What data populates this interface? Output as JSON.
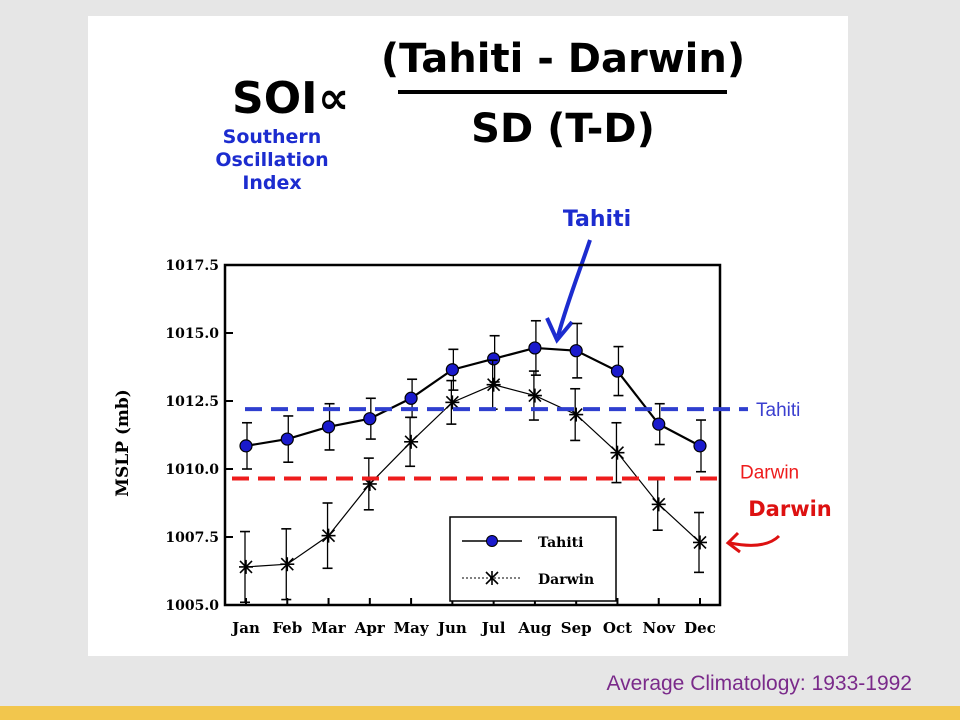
{
  "slide": {
    "caption": "Average Climatology: 1933-1992",
    "colors": {
      "background": "#e6e6e6",
      "bottom_bar": "#f2c64d",
      "caption": "#7a2a8a",
      "tahiti_line": "#2f3fcf",
      "darwin_line": "#ee1c1c",
      "annotation_blue": "#1c2ccf",
      "annotation_red": "#dd1111"
    }
  },
  "formula": {
    "lhs": "SOI",
    "proportional_symbol": "∝",
    "numerator": "(Tahiti - Darwin)",
    "denominator": "SD (T-D)",
    "index_name_lines": [
      "Southern",
      "Oscillation",
      "Index"
    ]
  },
  "annotations": {
    "tahiti_handwritten": "Tahiti",
    "darwin_handwritten": "Darwin",
    "tahiti_reference_label": "Tahiti",
    "darwin_reference_label": "Darwin"
  },
  "chart_data": {
    "type": "line",
    "title": "",
    "xlabel": "",
    "ylabel": "MSLP (mb)",
    "categories": [
      "Jan",
      "Feb",
      "Mar",
      "Apr",
      "May",
      "Jun",
      "Jul",
      "Aug",
      "Sep",
      "Oct",
      "Nov",
      "Dec"
    ],
    "ylim": [
      1005.0,
      1017.5
    ],
    "yticks": [
      "1005.0",
      "1007.5",
      "1010.0",
      "1012.5",
      "1015.0",
      "1017.5"
    ],
    "grid": false,
    "legend_position": "bottom-right",
    "series": [
      {
        "name": "Tahiti",
        "marker": "filled-circle",
        "color": "#1a1acc",
        "values": [
          1010.85,
          1011.1,
          1011.55,
          1011.85,
          1012.6,
          1013.65,
          1014.05,
          1014.45,
          1014.35,
          1013.6,
          1011.65,
          1010.85
        ],
        "error": [
          0.85,
          0.85,
          0.85,
          0.75,
          0.7,
          0.75,
          0.85,
          1.0,
          1.0,
          0.9,
          0.75,
          0.95
        ]
      },
      {
        "name": "Darwin",
        "marker": "asterisk",
        "color": "#000000",
        "values": [
          1006.4,
          1006.5,
          1007.55,
          1009.45,
          1011.0,
          1012.45,
          1013.1,
          1012.7,
          1012.0,
          1010.6,
          1008.7,
          1007.3
        ],
        "error": [
          1.3,
          1.3,
          1.2,
          0.95,
          0.9,
          0.8,
          0.9,
          0.9,
          0.95,
          1.1,
          0.95,
          1.1
        ]
      }
    ],
    "reference_lines": [
      {
        "name": "Tahiti",
        "value": 1012.2,
        "color": "#2f3fcf"
      },
      {
        "name": "Darwin",
        "value": 1009.65,
        "color": "#ee1c1c"
      }
    ]
  }
}
